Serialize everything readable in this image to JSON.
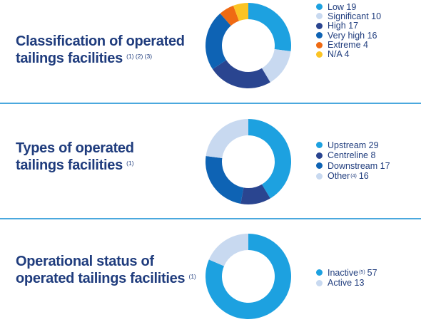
{
  "chart_data": [
    {
      "type": "donut",
      "title": "Classification of operated tailings facilities",
      "title_lines": [
        "Classification of operated",
        "tailings facilities"
      ],
      "title_notes": "(1) (2) (3)",
      "series": [
        {
          "name": "Low",
          "value": 19,
          "label": "Low 19",
          "note": "",
          "color": "#1da1e0"
        },
        {
          "name": "Significant",
          "value": 10,
          "label": "Significant 10",
          "note": "",
          "color": "#c8d9f0"
        },
        {
          "name": "High",
          "value": 17,
          "label": "High 17",
          "note": "",
          "color": "#2a4590"
        },
        {
          "name": "Very high",
          "value": 16,
          "label": "Very high 16",
          "note": "",
          "color": "#0e63b4"
        },
        {
          "name": "Extreme",
          "value": 4,
          "label": "Extreme 4",
          "note": "",
          "color": "#ef6a13"
        },
        {
          "name": "N/A",
          "value": 4,
          "label": "N/A 4",
          "note": "",
          "color": "#fbc424"
        }
      ]
    },
    {
      "type": "donut",
      "title": "Types of operated tailings facilities",
      "title_lines": [
        "Types of operated",
        "tailings facilities"
      ],
      "title_notes": "(1)",
      "series": [
        {
          "name": "Upstream",
          "value": 29,
          "label": "Upstream 29",
          "note": "",
          "color": "#1da1e0"
        },
        {
          "name": "Centreline",
          "value": 8,
          "label": "Centreline 8",
          "note": "",
          "color": "#2a4590"
        },
        {
          "name": "Downstream",
          "value": 17,
          "label": "Downstream 17",
          "note": "",
          "color": "#0e63b4"
        },
        {
          "name": "Other",
          "value": 16,
          "label": "Other",
          "note": "(4)",
          "value_label": "16",
          "color": "#c8d9f0"
        }
      ]
    },
    {
      "type": "donut",
      "title": "Operational status of operated tailings facilities",
      "title_lines": [
        "Operational status of",
        "operated tailings facilities"
      ],
      "title_notes": "(1)",
      "series": [
        {
          "name": "Inactive",
          "value": 57,
          "label": "Inactive",
          "note": "(5)",
          "value_label": "57",
          "color": "#1da1e0"
        },
        {
          "name": "Active",
          "value": 13,
          "label": "Active 13",
          "note": "",
          "color": "#c8d9f0"
        }
      ]
    }
  ]
}
